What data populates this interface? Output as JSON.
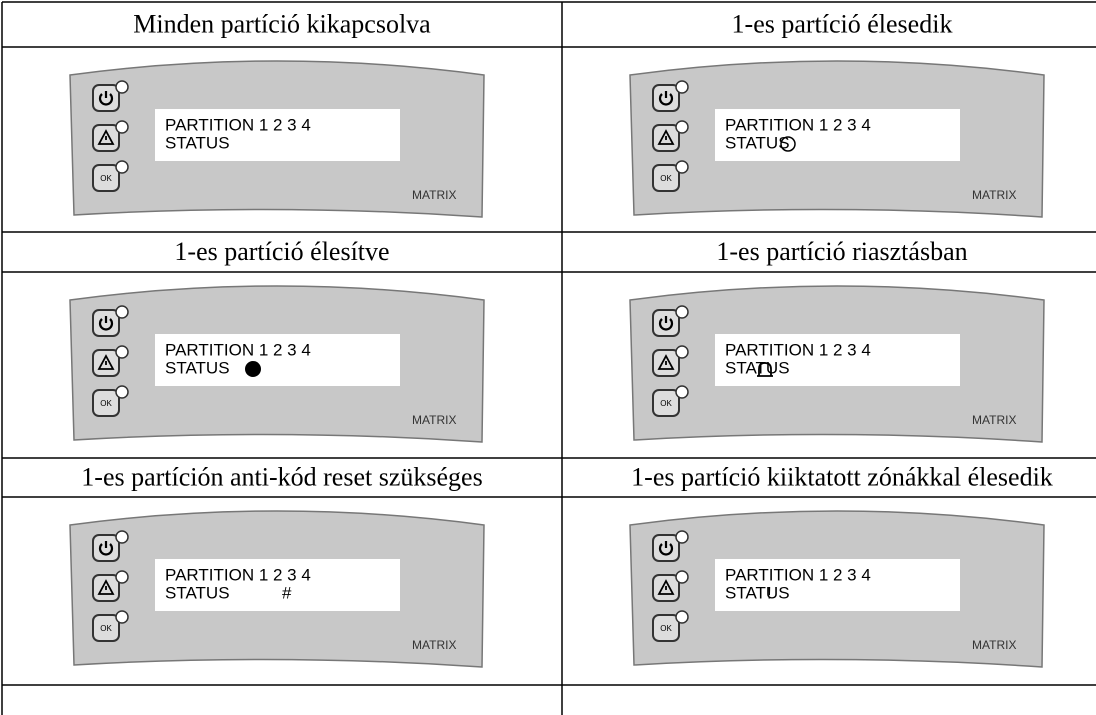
{
  "cells": [
    {
      "caption": "Minden partíció kikapcsolva",
      "display": [
        "PARTITION 1 2 3 4",
        "STATUS"
      ],
      "ok_button": "OK",
      "brand": "MATRIX"
    },
    {
      "caption": "1-es partíció élesedik",
      "display": [
        "PARTITION 1 2 3 4",
        "STATUS"
      ],
      "ok_button": "OK",
      "brand": "MATRIX"
    },
    {
      "caption": "1-es partíció élesítve",
      "display": [
        "PARTITION 1 2 3 4",
        "STATUS"
      ],
      "ok_button": "OK",
      "brand": "MATRIX"
    },
    {
      "caption": "1-es partíció riasztásban",
      "display": [
        "PARTITION 1 2 3 4",
        "STATUS"
      ],
      "ok_button": "OK",
      "brand": "MATRIX"
    },
    {
      "caption": "1-es partíción anti-kód reset szükséges",
      "display": [
        "PARTITION 1 2 3 4",
        "STATUS"
      ],
      "status_symbol": "#",
      "ok_button": "OK",
      "brand": "MATRIX"
    },
    {
      "caption": "1-es partíció kiiktatott zónákkal élesedik",
      "display": [
        "PARTITION 1 2 3 4",
        "STATUS"
      ],
      "status_symbol": "!",
      "ok_button": "OK",
      "brand": "MATRIX"
    }
  ]
}
